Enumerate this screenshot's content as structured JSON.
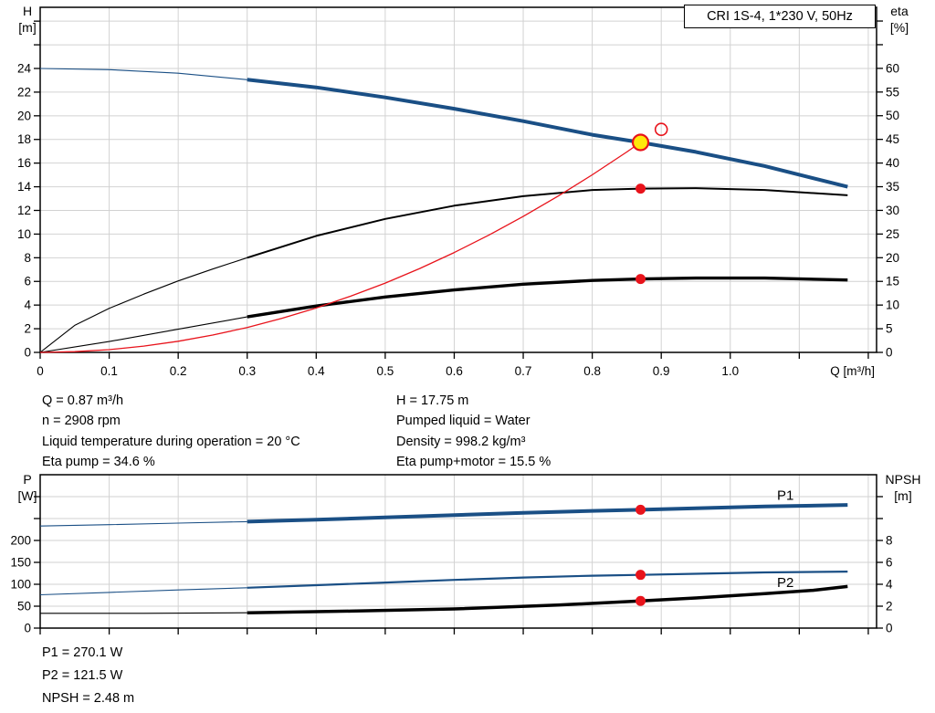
{
  "header": {
    "title_box": "CRI 1S-4, 1*230 V, 50Hz"
  },
  "colors": {
    "blue": "#1a4f85",
    "black": "#000000",
    "red": "#e8131b",
    "grid": "#d2d2d2",
    "yellow": "#ffe90b",
    "frame": "#000000"
  },
  "chart_data": [
    {
      "type": "line",
      "id": "head-eta",
      "x_axis": {
        "unit": "Q [m³/h]",
        "min": 0,
        "max": 1.212,
        "grid_step": 0.1,
        "ticks": [
          {
            "v": 0,
            "l": "0"
          },
          {
            "v": 0.1,
            "l": "0.1"
          },
          {
            "v": 0.2,
            "l": "0.2"
          },
          {
            "v": 0.3,
            "l": "0.3"
          },
          {
            "v": 0.4,
            "l": "0.4"
          },
          {
            "v": 0.5,
            "l": "0.5"
          },
          {
            "v": 0.6,
            "l": "0.6"
          },
          {
            "v": 0.7,
            "l": "0.7"
          },
          {
            "v": 0.8,
            "l": "0.8"
          },
          {
            "v": 0.9,
            "l": "0.9"
          },
          {
            "v": 1.0,
            "l": "1.0"
          },
          {
            "v": 1.1
          },
          {
            "v": 1.2
          }
        ]
      },
      "y_left": {
        "unit": [
          "H",
          "[m]"
        ],
        "min": 0,
        "max": 29.17,
        "grid_step": 2,
        "ticks": [
          {
            "v": 0,
            "l": "0"
          },
          {
            "v": 2,
            "l": "2"
          },
          {
            "v": 4,
            "l": "4"
          },
          {
            "v": 6,
            "l": "6"
          },
          {
            "v": 8,
            "l": "8"
          },
          {
            "v": 10,
            "l": "10"
          },
          {
            "v": 12,
            "l": "12"
          },
          {
            "v": 14,
            "l": "14"
          },
          {
            "v": 16,
            "l": "16"
          },
          {
            "v": 18,
            "l": "18"
          },
          {
            "v": 20,
            "l": "20"
          },
          {
            "v": 22,
            "l": "22"
          },
          {
            "v": 24,
            "l": "24"
          },
          {
            "v": 26
          },
          {
            "v": 28
          }
        ]
      },
      "y_right": {
        "unit": [
          "eta",
          "[%]"
        ],
        "min": 0,
        "max": 72.9,
        "ticks": [
          {
            "v": 0,
            "l": "0"
          },
          {
            "v": 5,
            "l": "5"
          },
          {
            "v": 10,
            "l": "10"
          },
          {
            "v": 15,
            "l": "15"
          },
          {
            "v": 20,
            "l": "20"
          },
          {
            "v": 25,
            "l": "25"
          },
          {
            "v": 30,
            "l": "30"
          },
          {
            "v": 35,
            "l": "35"
          },
          {
            "v": 40,
            "l": "40"
          },
          {
            "v": 45,
            "l": "45"
          },
          {
            "v": 50,
            "l": "50"
          },
          {
            "v": 55,
            "l": "55"
          },
          {
            "v": 60,
            "l": "60"
          },
          {
            "v": 65
          },
          {
            "v": 70
          }
        ]
      },
      "series": [
        {
          "name": "h-q-curve",
          "axis": "left",
          "color": "blue",
          "width": 4,
          "thin_to": 0.3,
          "points": [
            [
              0,
              24
            ],
            [
              0.1,
              23.9
            ],
            [
              0.2,
              23.6
            ],
            [
              0.3,
              23.05
            ],
            [
              0.4,
              22.4
            ],
            [
              0.5,
              21.55
            ],
            [
              0.6,
              20.6
            ],
            [
              0.7,
              19.55
            ],
            [
              0.8,
              18.4
            ],
            [
              0.87,
              17.75
            ],
            [
              0.95,
              16.95
            ],
            [
              1.05,
              15.75
            ],
            [
              1.17,
              14.0
            ]
          ]
        },
        {
          "name": "eta-pump-curve",
          "axis": "right",
          "color": "black",
          "width": 2,
          "thin_to": 0.3,
          "points": [
            [
              0,
              0
            ],
            [
              0.05,
              5.7
            ],
            [
              0.1,
              9.3
            ],
            [
              0.15,
              12.3
            ],
            [
              0.2,
              15.1
            ],
            [
              0.25,
              17.6
            ],
            [
              0.3,
              20.0
            ],
            [
              0.4,
              24.6
            ],
            [
              0.5,
              28.2
            ],
            [
              0.6,
              31.0
            ],
            [
              0.7,
              33.0
            ],
            [
              0.8,
              34.3
            ],
            [
              0.87,
              34.6
            ],
            [
              0.95,
              34.7
            ],
            [
              1.05,
              34.3
            ],
            [
              1.17,
              33.2
            ]
          ]
        },
        {
          "name": "eta-pump-motor-curve",
          "axis": "right",
          "color": "black",
          "width": 3.4,
          "thin_to": 0.3,
          "points": [
            [
              0,
              0
            ],
            [
              0.1,
              2.3
            ],
            [
              0.2,
              4.9
            ],
            [
              0.3,
              7.5
            ],
            [
              0.4,
              9.8
            ],
            [
              0.5,
              11.7
            ],
            [
              0.6,
              13.2
            ],
            [
              0.7,
              14.4
            ],
            [
              0.8,
              15.2
            ],
            [
              0.87,
              15.5
            ],
            [
              0.95,
              15.7
            ],
            [
              1.05,
              15.7
            ],
            [
              1.17,
              15.3
            ]
          ]
        },
        {
          "name": "system-curve",
          "axis": "left",
          "color": "red",
          "width": 1.3,
          "points": [
            [
              0,
              0
            ],
            [
              0.05,
              0.06
            ],
            [
              0.1,
              0.23
            ],
            [
              0.15,
              0.53
            ],
            [
              0.2,
              0.94
            ],
            [
              0.25,
              1.47
            ],
            [
              0.3,
              2.11
            ],
            [
              0.35,
              2.87
            ],
            [
              0.4,
              3.75
            ],
            [
              0.45,
              4.75
            ],
            [
              0.5,
              5.86
            ],
            [
              0.55,
              7.09
            ],
            [
              0.6,
              8.44
            ],
            [
              0.65,
              9.91
            ],
            [
              0.7,
              11.49
            ],
            [
              0.75,
              13.19
            ],
            [
              0.8,
              15.01
            ],
            [
              0.85,
              16.94
            ],
            [
              0.87,
              17.75
            ]
          ]
        }
      ],
      "markers": [
        {
          "name": "duty-point",
          "type": "duty",
          "axis": "left",
          "q": 0.87,
          "v": 17.75
        },
        {
          "name": "requested-duty-point",
          "type": "open",
          "axis": "left",
          "q": 0.9,
          "v": 18.85
        },
        {
          "name": "eta-pump-point",
          "type": "dot",
          "axis": "right",
          "q": 0.87,
          "v": 34.6
        },
        {
          "name": "eta-pump-motor-point",
          "type": "dot",
          "axis": "right",
          "q": 0.87,
          "v": 15.5
        }
      ]
    },
    {
      "type": "line",
      "id": "power-npsh",
      "x_axis": {
        "unit": null,
        "min": 0,
        "max": 1.212,
        "grid_step": 0.1,
        "ticks": [
          {
            "v": 0
          },
          {
            "v": 0.1
          },
          {
            "v": 0.2
          },
          {
            "v": 0.3
          },
          {
            "v": 0.4
          },
          {
            "v": 0.5
          },
          {
            "v": 0.6
          },
          {
            "v": 0.7
          },
          {
            "v": 0.8
          },
          {
            "v": 0.9
          },
          {
            "v": 1.0
          },
          {
            "v": 1.1
          },
          {
            "v": 1.2
          }
        ]
      },
      "y_left": {
        "unit": [
          "P",
          "[W]"
        ],
        "min": 0,
        "max": 350,
        "grid_step": 50,
        "ticks": [
          {
            "v": 0,
            "l": "0"
          },
          {
            "v": 50,
            "l": "50"
          },
          {
            "v": 100,
            "l": "100"
          },
          {
            "v": 150,
            "l": "150"
          },
          {
            "v": 200,
            "l": "200"
          },
          {
            "v": 250
          },
          {
            "v": 300
          }
        ]
      },
      "y_right": {
        "unit": [
          "NPSH",
          "[m]"
        ],
        "min": 0,
        "max": 14,
        "ticks": [
          {
            "v": 0,
            "l": "0"
          },
          {
            "v": 2,
            "l": "2"
          },
          {
            "v": 4,
            "l": "4"
          },
          {
            "v": 6,
            "l": "6"
          },
          {
            "v": 8,
            "l": "8"
          },
          {
            "v": 10
          },
          {
            "v": 12
          }
        ]
      },
      "series": [
        {
          "name": "p1-curve",
          "label": "P1",
          "label_q": 1.08,
          "label_dy": -7,
          "axis": "left",
          "color": "blue",
          "width": 4,
          "thin_to": 0.3,
          "points": [
            [
              0,
              233
            ],
            [
              0.1,
              236
            ],
            [
              0.2,
              239.5
            ],
            [
              0.3,
              243
            ],
            [
              0.4,
              247.5
            ],
            [
              0.5,
              252.5
            ],
            [
              0.6,
              258
            ],
            [
              0.7,
              263
            ],
            [
              0.8,
              267.5
            ],
            [
              0.87,
              270.1
            ],
            [
              0.95,
              273.5
            ],
            [
              1.05,
              277.5
            ],
            [
              1.17,
              281
            ]
          ]
        },
        {
          "name": "p2-curve",
          "label": "P2",
          "label_q": 1.08,
          "label_dy": 16,
          "axis": "left",
          "color": "blue",
          "width": 2.2,
          "thin_to": 0.3,
          "points": [
            [
              0,
              76
            ],
            [
              0.1,
              81.5
            ],
            [
              0.2,
              87
            ],
            [
              0.3,
              92
            ],
            [
              0.4,
              98
            ],
            [
              0.5,
              104
            ],
            [
              0.6,
              110
            ],
            [
              0.7,
              115.5
            ],
            [
              0.8,
              119.5
            ],
            [
              0.87,
              121.5
            ],
            [
              0.95,
              124
            ],
            [
              1.05,
              127
            ],
            [
              1.17,
              129
            ]
          ]
        },
        {
          "name": "npsh-curve",
          "axis": "right",
          "color": "black",
          "width": 3.5,
          "thin_to": 0.3,
          "points": [
            [
              0,
              1.35
            ],
            [
              0.15,
              1.35
            ],
            [
              0.3,
              1.4
            ],
            [
              0.45,
              1.55
            ],
            [
              0.6,
              1.75
            ],
            [
              0.75,
              2.1
            ],
            [
              0.87,
              2.48
            ],
            [
              0.95,
              2.75
            ],
            [
              1.05,
              3.15
            ],
            [
              1.12,
              3.45
            ],
            [
              1.17,
              3.8
            ]
          ]
        }
      ],
      "markers": [
        {
          "name": "p1-point",
          "type": "dot",
          "axis": "left",
          "q": 0.87,
          "v": 270.1
        },
        {
          "name": "p2-point",
          "type": "dot",
          "axis": "left",
          "q": 0.87,
          "v": 121.5
        },
        {
          "name": "npsh-point",
          "type": "dot",
          "axis": "right",
          "q": 0.87,
          "v": 2.48
        }
      ]
    }
  ],
  "info_top": {
    "left": [
      "Q = 0.87 m³/h",
      "n = 2908 rpm",
      "Liquid temperature during operation = 20 °C",
      "Eta pump = 34.6 %"
    ],
    "right": [
      "H = 17.75 m",
      "Pumped liquid = Water",
      "Density = 998.2 kg/m³",
      "Eta pump+motor = 15.5 %"
    ]
  },
  "info_bottom": [
    "P1 = 270.1 W",
    "P2 = 121.5 W",
    "NPSH = 2.48 m"
  ]
}
